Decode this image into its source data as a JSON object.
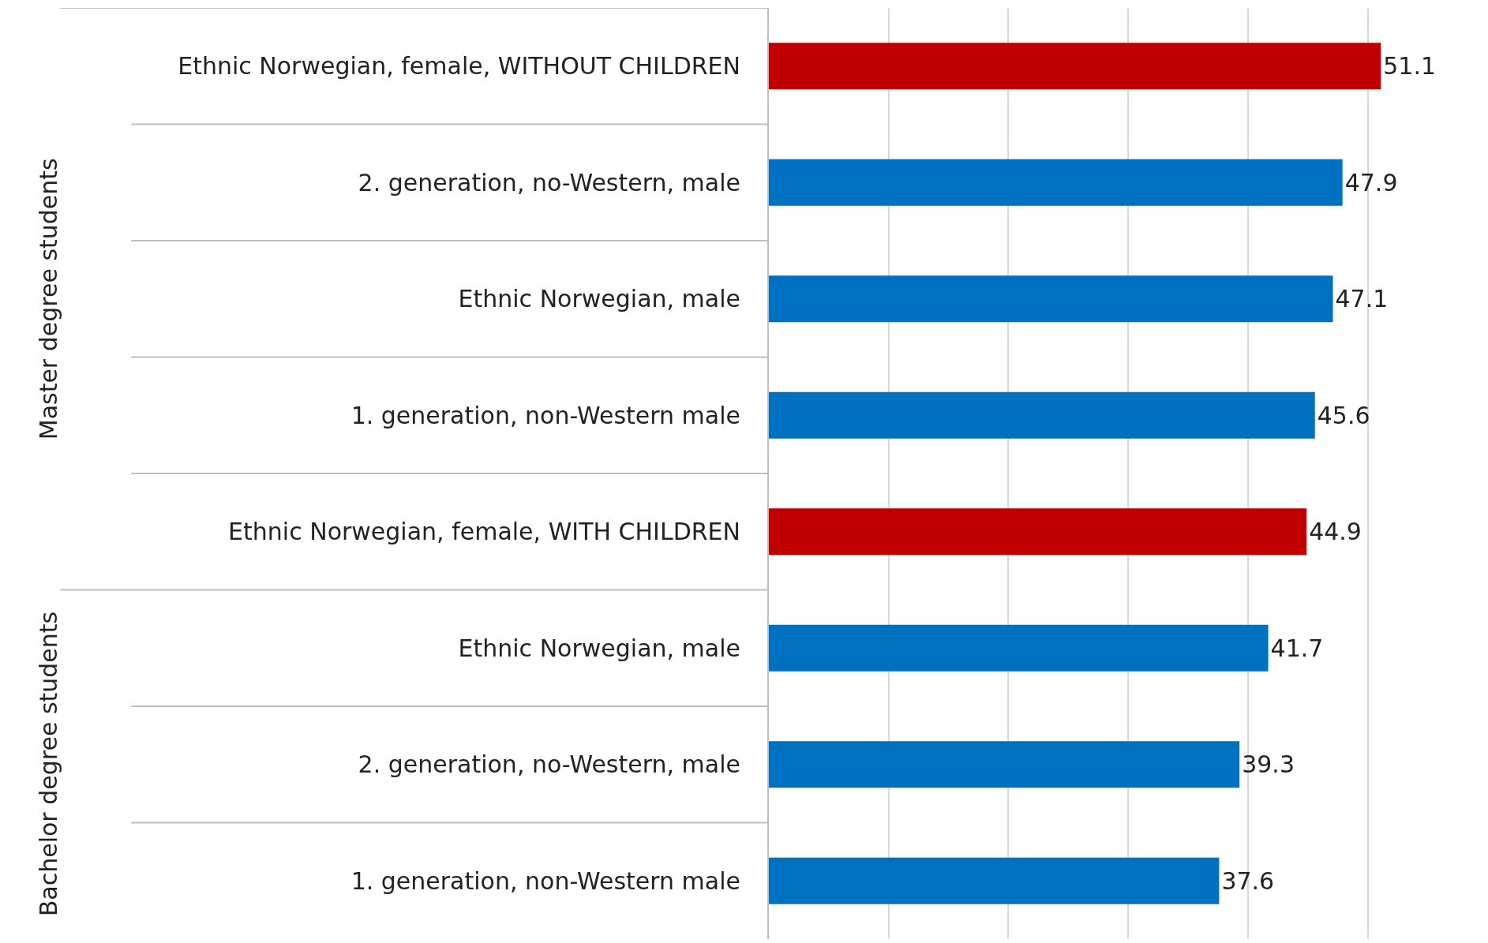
{
  "chart_data": {
    "type": "bar",
    "orientation": "horizontal",
    "categories": [
      "Ethnic Norwegian, female, WITHOUT CHILDREN",
      "2. generation, no-Western, male",
      "Ethnic Norwegian, male",
      "1. generation, non-Western male",
      "Ethnic Norwegian, female, WITH CHILDREN",
      "Ethnic Norwegian, male",
      "2. generation, no-Western, male",
      "1. generation, non-Western male"
    ],
    "values": [
      51.1,
      47.9,
      47.1,
      45.6,
      44.9,
      41.7,
      39.3,
      37.6
    ],
    "colors": [
      "#c00000",
      "#0070c0",
      "#0070c0",
      "#0070c0",
      "#c00000",
      "#0070c0",
      "#0070c0",
      "#0070c0"
    ],
    "data_labels": true,
    "xticks": [
      {
        "value": 0,
        "label": null
      },
      {
        "value": 10,
        "label": null
      },
      {
        "value": 20,
        "label": null
      },
      {
        "value": 30,
        "label": null
      },
      {
        "value": 40,
        "label": null
      },
      {
        "value": 50,
        "label": null
      }
    ],
    "grid": "x",
    "tick_labels": "y",
    "annotations": [
      "Master degree students",
      "Bachelor degree students"
    ]
  }
}
